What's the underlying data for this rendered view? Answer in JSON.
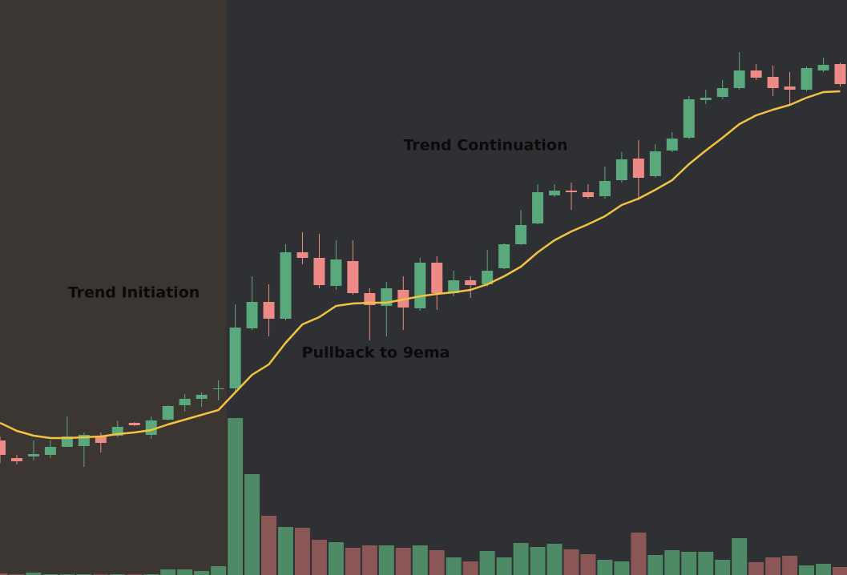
{
  "chart_data": {
    "type": "candlestick",
    "annotations": [
      "Trend Initiation",
      "Pullback to 9ema",
      "Trend Continuation"
    ],
    "open": [
      168,
      146,
      148,
      150,
      160,
      161,
      174,
      174,
      190,
      175,
      194,
      212,
      220,
      232,
      233,
      308,
      341,
      320,
      403,
      396,
      361,
      392,
      352,
      336,
      356,
      333,
      390,
      352,
      368,
      363,
      383,
      413,
      439,
      474,
      480,
      478,
      473,
      493,
      520,
      498,
      530,
      546,
      593,
      597,
      608,
      630,
      622,
      610,
      606,
      630,
      638
    ],
    "high": [
      173,
      150,
      168,
      168,
      198,
      178,
      178,
      193,
      191,
      198,
      212,
      226,
      228,
      243,
      338,
      373,
      363,
      413,
      428,
      426,
      418,
      418,
      358,
      366,
      373,
      396,
      398,
      380,
      373,
      406,
      414,
      456,
      488,
      488,
      490,
      488,
      510,
      528,
      543,
      538,
      553,
      598,
      606,
      618,
      653,
      638,
      636,
      628,
      635,
      646,
      640
    ],
    "low": [
      140,
      138,
      143,
      146,
      160,
      135,
      153,
      172,
      186,
      170,
      193,
      204,
      210,
      218,
      228,
      306,
      298,
      318,
      388,
      358,
      356,
      350,
      293,
      298,
      306,
      330,
      331,
      348,
      346,
      360,
      382,
      412,
      438,
      472,
      456,
      470,
      470,
      490,
      468,
      496,
      528,
      544,
      588,
      594,
      606,
      618,
      598,
      588,
      604,
      628,
      610
    ],
    "close": [
      150,
      142,
      151,
      160,
      173,
      175,
      165,
      185,
      187,
      193,
      211,
      220,
      225,
      233,
      309,
      341,
      320,
      403,
      396,
      362,
      394,
      352,
      337,
      358,
      334,
      390,
      352,
      368,
      362,
      380,
      413,
      437,
      478,
      480,
      478,
      472,
      492,
      519,
      496,
      529,
      545,
      594,
      596,
      608,
      630,
      621,
      608,
      606,
      633,
      637,
      613
    ],
    "volume": [
      2,
      1,
      3,
      1,
      1,
      1,
      1,
      1,
      1,
      1,
      7,
      7,
      5,
      11,
      196,
      126,
      74,
      60,
      59,
      44,
      41,
      34,
      37,
      37,
      34,
      37,
      31,
      22,
      17,
      30,
      22,
      40,
      35,
      39,
      32,
      26,
      19,
      17,
      53,
      25,
      31,
      29,
      29,
      19,
      46,
      16,
      22,
      24,
      12,
      14,
      10
    ],
    "ema": [
      190,
      180,
      174,
      171,
      171,
      172,
      173,
      176,
      178,
      181,
      188,
      194,
      200,
      206,
      228,
      250,
      263,
      290,
      313,
      322,
      336,
      339,
      340,
      340,
      344,
      348,
      351,
      353,
      356,
      363,
      373,
      385,
      403,
      418,
      429,
      438,
      448,
      462,
      470,
      481,
      493,
      513,
      530,
      546,
      563,
      574,
      581,
      587,
      596,
      603,
      604
    ],
    "ylim": [
      0,
      718
    ],
    "y2lim": [
      0,
      718
    ],
    "up_color": "#5aa97c",
    "down_color": "#ee8a86",
    "volume_up_color": "#4f8a67",
    "volume_down_color": "#8a5756",
    "ema_color": "#f2c240"
  }
}
